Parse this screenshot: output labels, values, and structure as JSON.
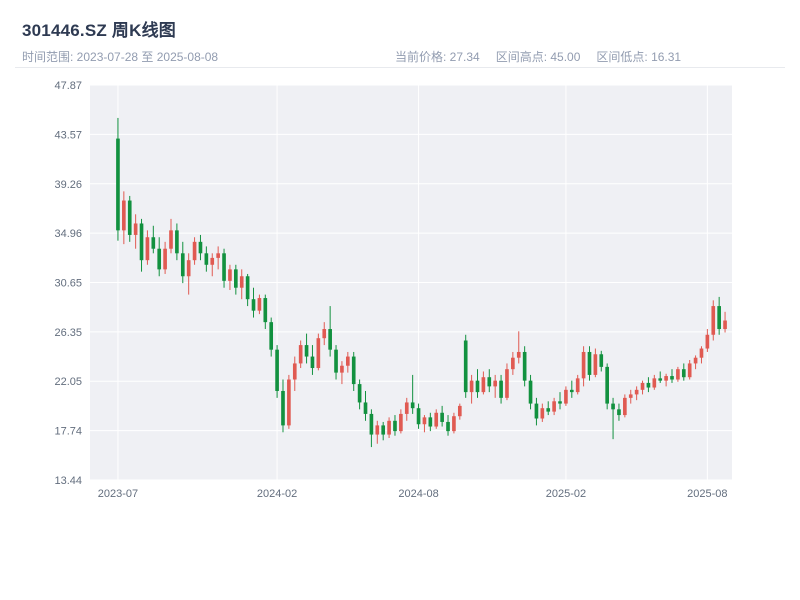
{
  "header": {
    "title": "301446.SZ 周K线图",
    "time_range": "时间范围: 2023-07-28 至 2025-08-08",
    "stats": [
      {
        "text": "当前价格: 27.34"
      },
      {
        "text": "区间高点: 45.00"
      },
      {
        "text": "区间低点: 16.31"
      }
    ]
  },
  "colors": {
    "title_text": "#2e3a52",
    "meta_text": "#929cb0",
    "axis_text": "#636e7e",
    "plot_bg": "#eff0f4",
    "grid_line": "#ffffff",
    "divider": "#e8eaee",
    "up": "#e05a52",
    "down": "#12913f"
  },
  "chart_data": {
    "type": "candlestick",
    "title": "301446.SZ 周K线图",
    "frequency": "weekly",
    "date_start": "2023-07-28",
    "date_end": "2025-08-08",
    "current_price": 27.34,
    "range_high": 45.0,
    "range_low": 16.31,
    "y_range": [
      13.44,
      47.87
    ],
    "y_ticks": [
      47.87,
      43.57,
      39.26,
      34.96,
      30.65,
      26.35,
      22.05,
      17.74,
      13.44
    ],
    "x_ticks": [
      {
        "label": "2023-07",
        "index": 0
      },
      {
        "label": "2024-02",
        "index": 27
      },
      {
        "label": "2024-08",
        "index": 51
      },
      {
        "label": "2025-02",
        "index": 76
      },
      {
        "label": "2025-08",
        "index": 100
      }
    ],
    "up_color": "#e05a52",
    "down_color": "#12913f",
    "candles_format": [
      "open",
      "high",
      "low",
      "close"
    ],
    "candles": [
      [
        43.2,
        45.0,
        34.3,
        35.2
      ],
      [
        35.2,
        38.6,
        34.0,
        37.8
      ],
      [
        37.8,
        38.2,
        34.2,
        34.8
      ],
      [
        34.8,
        36.6,
        33.6,
        35.8
      ],
      [
        35.8,
        36.2,
        31.6,
        32.6
      ],
      [
        32.6,
        35.2,
        32.2,
        34.6
      ],
      [
        34.6,
        35.6,
        33.2,
        33.6
      ],
      [
        33.6,
        34.6,
        31.2,
        31.8
      ],
      [
        31.8,
        34.2,
        31.4,
        33.6
      ],
      [
        33.6,
        36.2,
        33.2,
        35.2
      ],
      [
        35.2,
        35.8,
        32.6,
        33.2
      ],
      [
        33.2,
        34.2,
        30.6,
        31.2
      ],
      [
        31.2,
        33.2,
        29.6,
        32.6
      ],
      [
        32.6,
        34.6,
        32.2,
        34.2
      ],
      [
        34.2,
        34.8,
        32.6,
        33.2
      ],
      [
        33.2,
        33.8,
        31.6,
        32.2
      ],
      [
        32.2,
        33.2,
        31.2,
        32.8
      ],
      [
        32.8,
        33.8,
        31.8,
        33.2
      ],
      [
        33.2,
        33.6,
        30.2,
        30.8
      ],
      [
        30.8,
        32.2,
        30.0,
        31.8
      ],
      [
        31.8,
        32.2,
        29.6,
        30.2
      ],
      [
        30.2,
        31.8,
        29.2,
        31.2
      ],
      [
        31.2,
        31.4,
        28.6,
        29.2
      ],
      [
        29.2,
        30.2,
        27.6,
        28.2
      ],
      [
        28.2,
        29.6,
        27.9,
        29.3
      ],
      [
        29.3,
        29.6,
        26.6,
        27.2
      ],
      [
        27.2,
        27.6,
        24.2,
        24.8
      ],
      [
        24.8,
        25.2,
        20.6,
        21.2
      ],
      [
        21.2,
        22.2,
        17.6,
        18.2
      ],
      [
        18.2,
        22.6,
        17.9,
        22.2
      ],
      [
        22.2,
        24.2,
        21.2,
        23.6
      ],
      [
        23.6,
        25.6,
        23.2,
        25.2
      ],
      [
        25.2,
        26.2,
        23.6,
        24.2
      ],
      [
        24.2,
        25.2,
        22.6,
        23.2
      ],
      [
        23.2,
        26.2,
        23.0,
        25.8
      ],
      [
        25.8,
        27.2,
        25.2,
        26.6
      ],
      [
        26.6,
        28.6,
        24.2,
        24.8
      ],
      [
        24.8,
        25.2,
        22.2,
        22.8
      ],
      [
        22.8,
        23.8,
        21.8,
        23.4
      ],
      [
        23.4,
        24.6,
        22.8,
        24.2
      ],
      [
        24.2,
        24.6,
        21.2,
        21.8
      ],
      [
        21.8,
        22.2,
        19.6,
        20.2
      ],
      [
        20.2,
        21.2,
        18.6,
        19.2
      ],
      [
        19.2,
        19.6,
        16.31,
        17.4
      ],
      [
        17.4,
        18.6,
        16.6,
        18.2
      ],
      [
        18.2,
        18.5,
        16.9,
        17.4
      ],
      [
        17.4,
        18.9,
        17.1,
        18.6
      ],
      [
        18.6,
        19.1,
        17.3,
        17.7
      ],
      [
        17.7,
        19.6,
        17.5,
        19.2
      ],
      [
        19.2,
        20.6,
        18.6,
        20.2
      ],
      [
        20.2,
        22.6,
        19.2,
        19.7
      ],
      [
        19.7,
        20.1,
        17.9,
        18.3
      ],
      [
        18.3,
        19.1,
        17.6,
        18.9
      ],
      [
        18.9,
        19.3,
        17.7,
        18.1
      ],
      [
        18.1,
        19.6,
        17.9,
        19.3
      ],
      [
        19.3,
        19.9,
        18.1,
        18.5
      ],
      [
        18.5,
        19.1,
        17.3,
        17.7
      ],
      [
        17.7,
        19.3,
        17.5,
        19.0
      ],
      [
        19.0,
        20.1,
        18.7,
        19.9
      ],
      [
        25.6,
        26.1,
        20.6,
        21.1
      ],
      [
        21.1,
        22.6,
        20.1,
        22.1
      ],
      [
        22.1,
        23.1,
        20.6,
        21.1
      ],
      [
        21.1,
        22.9,
        20.9,
        22.4
      ],
      [
        22.4,
        23.1,
        21.1,
        21.6
      ],
      [
        21.6,
        22.6,
        20.6,
        22.1
      ],
      [
        22.1,
        22.6,
        20.1,
        20.6
      ],
      [
        20.6,
        23.6,
        20.4,
        23.1
      ],
      [
        23.1,
        24.6,
        22.6,
        24.1
      ],
      [
        24.1,
        26.4,
        23.6,
        24.6
      ],
      [
        24.6,
        25.1,
        21.6,
        22.1
      ],
      [
        22.1,
        22.6,
        19.6,
        20.1
      ],
      [
        20.1,
        20.6,
        18.2,
        18.8
      ],
      [
        18.8,
        20.1,
        18.5,
        19.7
      ],
      [
        19.7,
        20.3,
        19.1,
        19.4
      ],
      [
        19.4,
        20.6,
        19.1,
        20.3
      ],
      [
        20.3,
        21.1,
        19.6,
        20.1
      ],
      [
        20.1,
        21.6,
        19.9,
        21.3
      ],
      [
        21.3,
        22.1,
        20.6,
        21.1
      ],
      [
        21.1,
        22.6,
        20.9,
        22.3
      ],
      [
        22.3,
        25.1,
        21.6,
        24.6
      ],
      [
        24.6,
        25.1,
        22.1,
        22.6
      ],
      [
        22.6,
        24.9,
        22.4,
        24.4
      ],
      [
        24.4,
        24.7,
        22.9,
        23.3
      ],
      [
        23.3,
        23.6,
        19.6,
        20.1
      ],
      [
        20.1,
        20.6,
        17.0,
        19.6
      ],
      [
        19.6,
        20.1,
        18.6,
        19.1
      ],
      [
        19.1,
        20.9,
        18.9,
        20.6
      ],
      [
        20.6,
        21.3,
        20.1,
        20.9
      ],
      [
        20.9,
        21.6,
        20.4,
        21.3
      ],
      [
        21.3,
        22.1,
        20.9,
        21.9
      ],
      [
        21.9,
        22.4,
        21.1,
        21.5
      ],
      [
        21.5,
        22.6,
        21.3,
        22.3
      ],
      [
        22.3,
        22.9,
        21.9,
        22.1
      ],
      [
        22.1,
        22.7,
        21.6,
        22.5
      ],
      [
        22.5,
        23.1,
        21.9,
        22.2
      ],
      [
        22.2,
        23.3,
        22.0,
        23.1
      ],
      [
        23.1,
        23.6,
        22.1,
        22.4
      ],
      [
        22.4,
        23.9,
        22.2,
        23.6
      ],
      [
        23.6,
        24.3,
        23.1,
        24.1
      ],
      [
        24.1,
        25.1,
        23.6,
        24.9
      ],
      [
        24.9,
        26.6,
        24.6,
        26.1
      ],
      [
        26.1,
        29.1,
        25.6,
        28.6
      ],
      [
        28.6,
        29.4,
        26.1,
        26.6
      ],
      [
        26.6,
        28.1,
        26.3,
        27.34
      ]
    ]
  }
}
